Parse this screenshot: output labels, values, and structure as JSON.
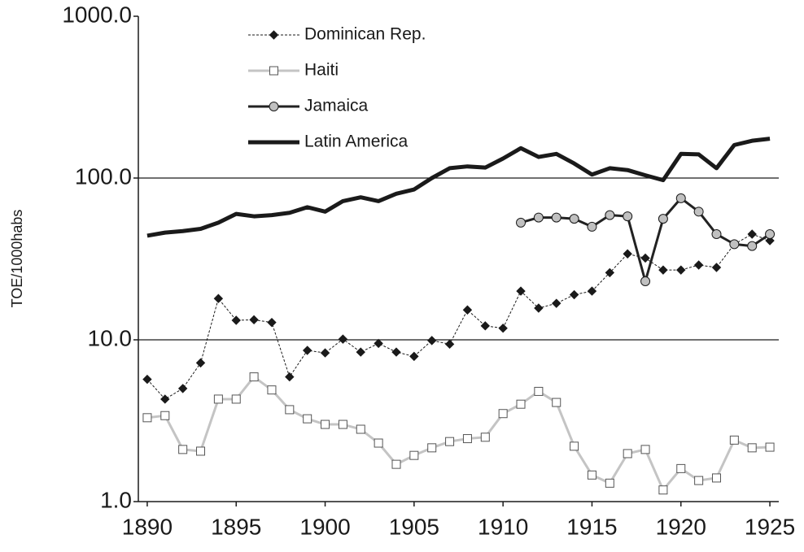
{
  "chart_data": {
    "type": "line",
    "y_label": "TOE/1000habs",
    "log_y": true,
    "grid": true,
    "legend": "top-left",
    "x": [
      1890,
      1891,
      1892,
      1893,
      1894,
      1895,
      1896,
      1897,
      1898,
      1899,
      1900,
      1901,
      1902,
      1903,
      1904,
      1905,
      1906,
      1907,
      1908,
      1909,
      1910,
      1911,
      1912,
      1913,
      1914,
      1915,
      1916,
      1917,
      1918,
      1919,
      1920,
      1921,
      1922,
      1923,
      1924,
      1925
    ],
    "xlim": [
      1889.5,
      1925.5
    ],
    "xticks": [
      1890,
      1895,
      1900,
      1905,
      1910,
      1915,
      1920,
      1925
    ],
    "ylim": [
      1,
      1000
    ],
    "yticks": [
      {
        "value": 1,
        "label": "1.0"
      },
      {
        "value": 10,
        "label": "10.0"
      },
      {
        "value": 100,
        "label": "100.0"
      },
      {
        "value": 1000,
        "label": "1000.0"
      }
    ],
    "series": [
      {
        "name": "Dominican Rep.",
        "color": "#1a1a1a",
        "marker": "diamond",
        "marker_fill": "#1a1a1a",
        "line_weight": "thin",
        "dashed": true,
        "values": [
          5.7,
          4.3,
          5.0,
          7.2,
          18,
          13.2,
          13.3,
          12.8,
          5.9,
          8.6,
          8.3,
          10.1,
          8.4,
          9.5,
          8.4,
          7.9,
          9.9,
          9.4,
          15.3,
          12.2,
          11.8,
          20,
          15.7,
          16.8,
          19,
          20,
          26,
          34,
          32,
          27,
          27,
          29,
          28,
          39,
          45,
          41
        ]
      },
      {
        "name": "Haiti",
        "color": "#c4c4c4",
        "marker": "square",
        "marker_fill": "#ffffff",
        "line_weight": "medium",
        "dashed": false,
        "values": [
          3.3,
          3.4,
          2.1,
          2.05,
          4.3,
          4.3,
          5.9,
          4.9,
          3.7,
          3.25,
          3.0,
          3.0,
          2.8,
          2.3,
          1.7,
          1.93,
          2.15,
          2.35,
          2.45,
          2.5,
          3.5,
          4.0,
          4.8,
          4.1,
          2.2,
          1.46,
          1.3,
          1.98,
          2.1,
          1.18,
          1.6,
          1.35,
          1.4,
          2.4,
          2.15,
          2.17
        ]
      },
      {
        "name": "Jamaica",
        "color": "#222222",
        "marker": "circle",
        "marker_fill": "#c0c0c0",
        "line_weight": "medium",
        "dashed": false,
        "values": [
          null,
          null,
          null,
          null,
          null,
          null,
          null,
          null,
          null,
          null,
          null,
          null,
          null,
          null,
          null,
          null,
          null,
          null,
          null,
          null,
          null,
          53,
          57,
          57,
          56,
          50,
          59,
          58,
          23,
          56,
          75,
          62,
          45,
          39,
          38,
          45
        ]
      },
      {
        "name": "Latin America",
        "color": "#1a1a1a",
        "marker": "none",
        "marker_fill": "none",
        "line_weight": "heavy",
        "dashed": false,
        "values": [
          44,
          46,
          47,
          48.5,
          53,
          60,
          58,
          59,
          61,
          66,
          62,
          72,
          76,
          72,
          80,
          85,
          100,
          115,
          118,
          116,
          132,
          153,
          135,
          141,
          123,
          105,
          115,
          112,
          104,
          97,
          141,
          140,
          115,
          160,
          170,
          175
        ]
      }
    ]
  }
}
